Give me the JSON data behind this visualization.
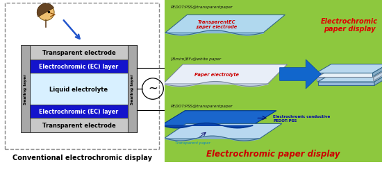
{
  "left_bg": "#ffffff",
  "right_bg": "#8dc83e",
  "left_title": "Conventional electrochromic display",
  "right_title": "Electrochromic paper display",
  "right_title_color": "#cc0000",
  "left_title_color": "#000000",
  "layer_labels": [
    "Transparent electrode",
    "Electrochromic (EC) layer",
    "Liquid electrolyte",
    "Electrochromic (EC) layer",
    "Transparent electrode"
  ],
  "layer_colors": [
    "#c8c8c8",
    "#1414cc",
    "#d8f0ff",
    "#1414cc",
    "#c8c8c8"
  ],
  "layer_text_colors": [
    "#000000",
    "#ffffff",
    "#000000",
    "#ffffff",
    "#000000"
  ],
  "sealing_color": "#a8a8a8",
  "right_top_label": "PEDOT:PSS@transparentpaper",
  "right_top_sublabel": "TransparentEC\npaper electrode",
  "right_mid_label": "[Bmim]BF₄@white paper",
  "right_mid_sublabel": "Paper electrolyte",
  "right_bot_label": "PEDOT:PSS@transparentpaper",
  "right_bot_sublabel1": "Electrochromic conductive\nPEDOT:PSS",
  "right_bot_sublabel2": "Transparent paper",
  "ec_display_label": "Electrochromic\npaper display",
  "ec_display_color": "#dd0000",
  "arrow_color": "#1166cc",
  "sheet_top_blue": "#a8d8ee",
  "sheet_top_dark": "#6699bb",
  "sheet_white": "#eef5ff",
  "sheet_blue_dark": "#2266cc",
  "sheet_light_blue": "#b8ddf0"
}
